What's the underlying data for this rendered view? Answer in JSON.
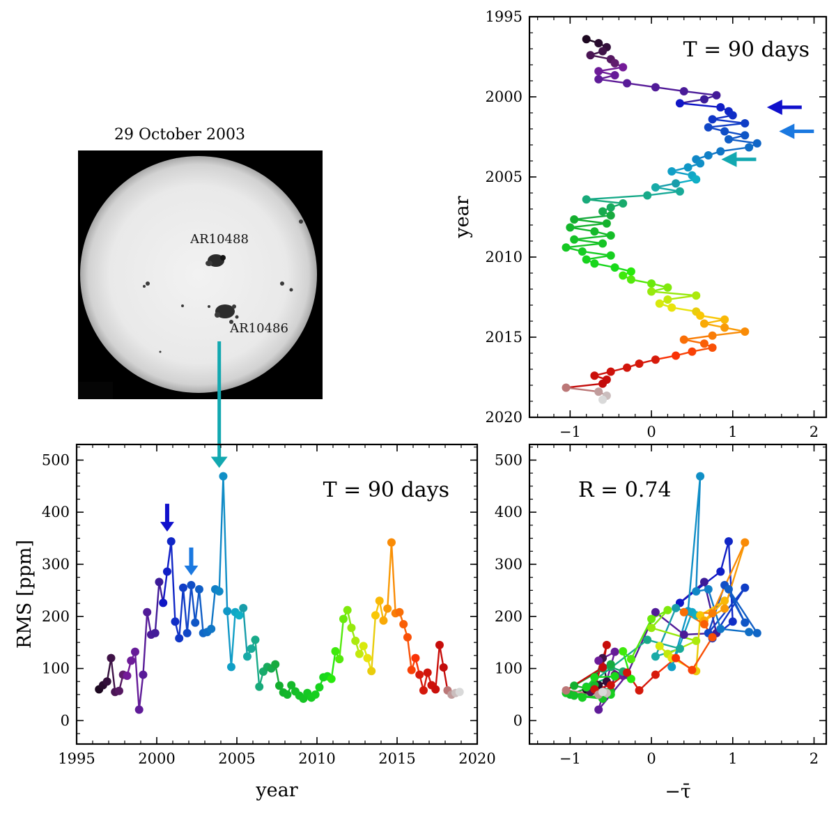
{
  "chart_data": [
    {
      "panel": "time-series",
      "type": "line",
      "xlabel": "year",
      "ylabel": "RMS [ppm]",
      "annotation": "T = 90 days",
      "xlim": [
        1995,
        2020
      ],
      "ylim": [
        -45,
        530
      ],
      "xticks": [
        1995,
        2000,
        2005,
        2010,
        2015,
        2020
      ],
      "yticks": [
        0,
        100,
        200,
        300,
        400,
        500
      ],
      "x": [
        1996.4,
        1996.65,
        1996.9,
        1997.15,
        1997.4,
        1997.65,
        1997.9,
        1998.15,
        1998.4,
        1998.65,
        1998.9,
        1999.15,
        1999.4,
        1999.65,
        1999.9,
        2000.15,
        2000.4,
        2000.65,
        2000.9,
        2001.15,
        2001.4,
        2001.65,
        2001.9,
        2002.15,
        2002.4,
        2002.65,
        2002.9,
        2003.15,
        2003.4,
        2003.65,
        2003.9,
        2004.15,
        2004.4,
        2004.65,
        2004.9,
        2005.15,
        2005.4,
        2005.65,
        2005.9,
        2006.15,
        2006.4,
        2006.65,
        2006.9,
        2007.15,
        2007.4,
        2007.65,
        2007.9,
        2008.15,
        2008.4,
        2008.65,
        2008.9,
        2009.15,
        2009.4,
        2009.65,
        2009.9,
        2010.15,
        2010.4,
        2010.65,
        2010.9,
        2011.15,
        2011.4,
        2011.65,
        2011.9,
        2012.15,
        2012.4,
        2012.65,
        2012.9,
        2013.15,
        2013.4,
        2013.65,
        2013.9,
        2014.15,
        2014.4,
        2014.65,
        2014.9,
        2015.15,
        2015.4,
        2015.65,
        2015.9,
        2016.15,
        2016.4,
        2016.65,
        2016.9,
        2017.15,
        2017.4,
        2017.65,
        2017.9,
        2018.15,
        2018.4,
        2018.65,
        2018.9
      ],
      "y": [
        60,
        68,
        75,
        120,
        55,
        57,
        88,
        86,
        115,
        132,
        21,
        88,
        208,
        165,
        168,
        266,
        226,
        286,
        344,
        190,
        158,
        255,
        168,
        260,
        188,
        252,
        168,
        170,
        176,
        252,
        248,
        469,
        210,
        103,
        208,
        202,
        216,
        123,
        138,
        155,
        65,
        94,
        103,
        100,
        108,
        67,
        54,
        50,
        68,
        56,
        48,
        42,
        53,
        44,
        50,
        64,
        83,
        85,
        80,
        133,
        118,
        195,
        212,
        178,
        153,
        128,
        143,
        120,
        95,
        202,
        230,
        192,
        215,
        342,
        206,
        208,
        185,
        160,
        97,
        120,
        88,
        58,
        92,
        68,
        60,
        145,
        102,
        58,
        50,
        53,
        55
      ],
      "arrows": [
        {
          "x": 2000.65,
          "y": 344,
          "color": "#1010cc"
        },
        {
          "x": 2002.15,
          "y": 260,
          "color": "#1a78e0"
        },
        {
          "x": 2003.9,
          "y": 469,
          "color": "#12a8b0"
        }
      ]
    },
    {
      "panel": "year-vs-tau",
      "type": "line",
      "ylabel": "year",
      "annotation": "T = 90 days",
      "xlim": [
        -1.5,
        2.15
      ],
      "ylim": [
        1995,
        2020
      ],
      "xticks": [
        -1,
        0,
        1,
        2
      ],
      "yticks": [
        1995,
        2000,
        2005,
        2010,
        2015,
        2020
      ],
      "arrow_years": [
        2000.65,
        2002.15,
        2003.9
      ]
    },
    {
      "panel": "rms-vs-tau",
      "type": "scatter",
      "xlabel": "−τ̄",
      "annotation": "R = 0.74",
      "xlim": [
        -1.5,
        2.15
      ],
      "ylim": [
        -45,
        530
      ],
      "xticks": [
        -1,
        0,
        1,
        2
      ],
      "yticks": [
        0,
        100,
        200,
        300,
        400,
        500
      ]
    }
  ],
  "tau": [
    -0.8,
    -0.65,
    -0.55,
    -0.6,
    -0.75,
    -0.5,
    -0.45,
    -0.35,
    -0.65,
    -0.45,
    -0.65,
    -0.3,
    0.05,
    0.4,
    0.8,
    0.65,
    0.35,
    0.85,
    0.95,
    1.0,
    0.75,
    1.15,
    0.7,
    0.9,
    1.15,
    0.95,
    1.3,
    1.2,
    0.85,
    0.7,
    0.55,
    0.6,
    0.45,
    0.25,
    0.5,
    0.55,
    0.3,
    0.05,
    0.35,
    -0.05,
    -0.8,
    -0.35,
    -0.5,
    -0.6,
    -0.5,
    -0.95,
    -0.55,
    -1.0,
    -0.7,
    -0.5,
    -0.95,
    -0.6,
    -1.05,
    -0.85,
    -0.5,
    -0.8,
    -0.7,
    -0.45,
    -0.25,
    -0.35,
    -0.25,
    0.0,
    0.2,
    0.0,
    0.55,
    0.2,
    0.1,
    0.25,
    0.55,
    0.6,
    0.9,
    0.65,
    0.9,
    1.15,
    0.75,
    0.4,
    0.65,
    0.75,
    0.5,
    0.3,
    0.05,
    -0.15,
    -0.3,
    -0.5,
    -0.7,
    -0.55,
    -0.6,
    -1.05,
    -0.65,
    -0.55,
    -0.6
  ],
  "sun_image": {
    "title": "29 October 2003",
    "labels": [
      "AR10488",
      "AR10486"
    ]
  }
}
